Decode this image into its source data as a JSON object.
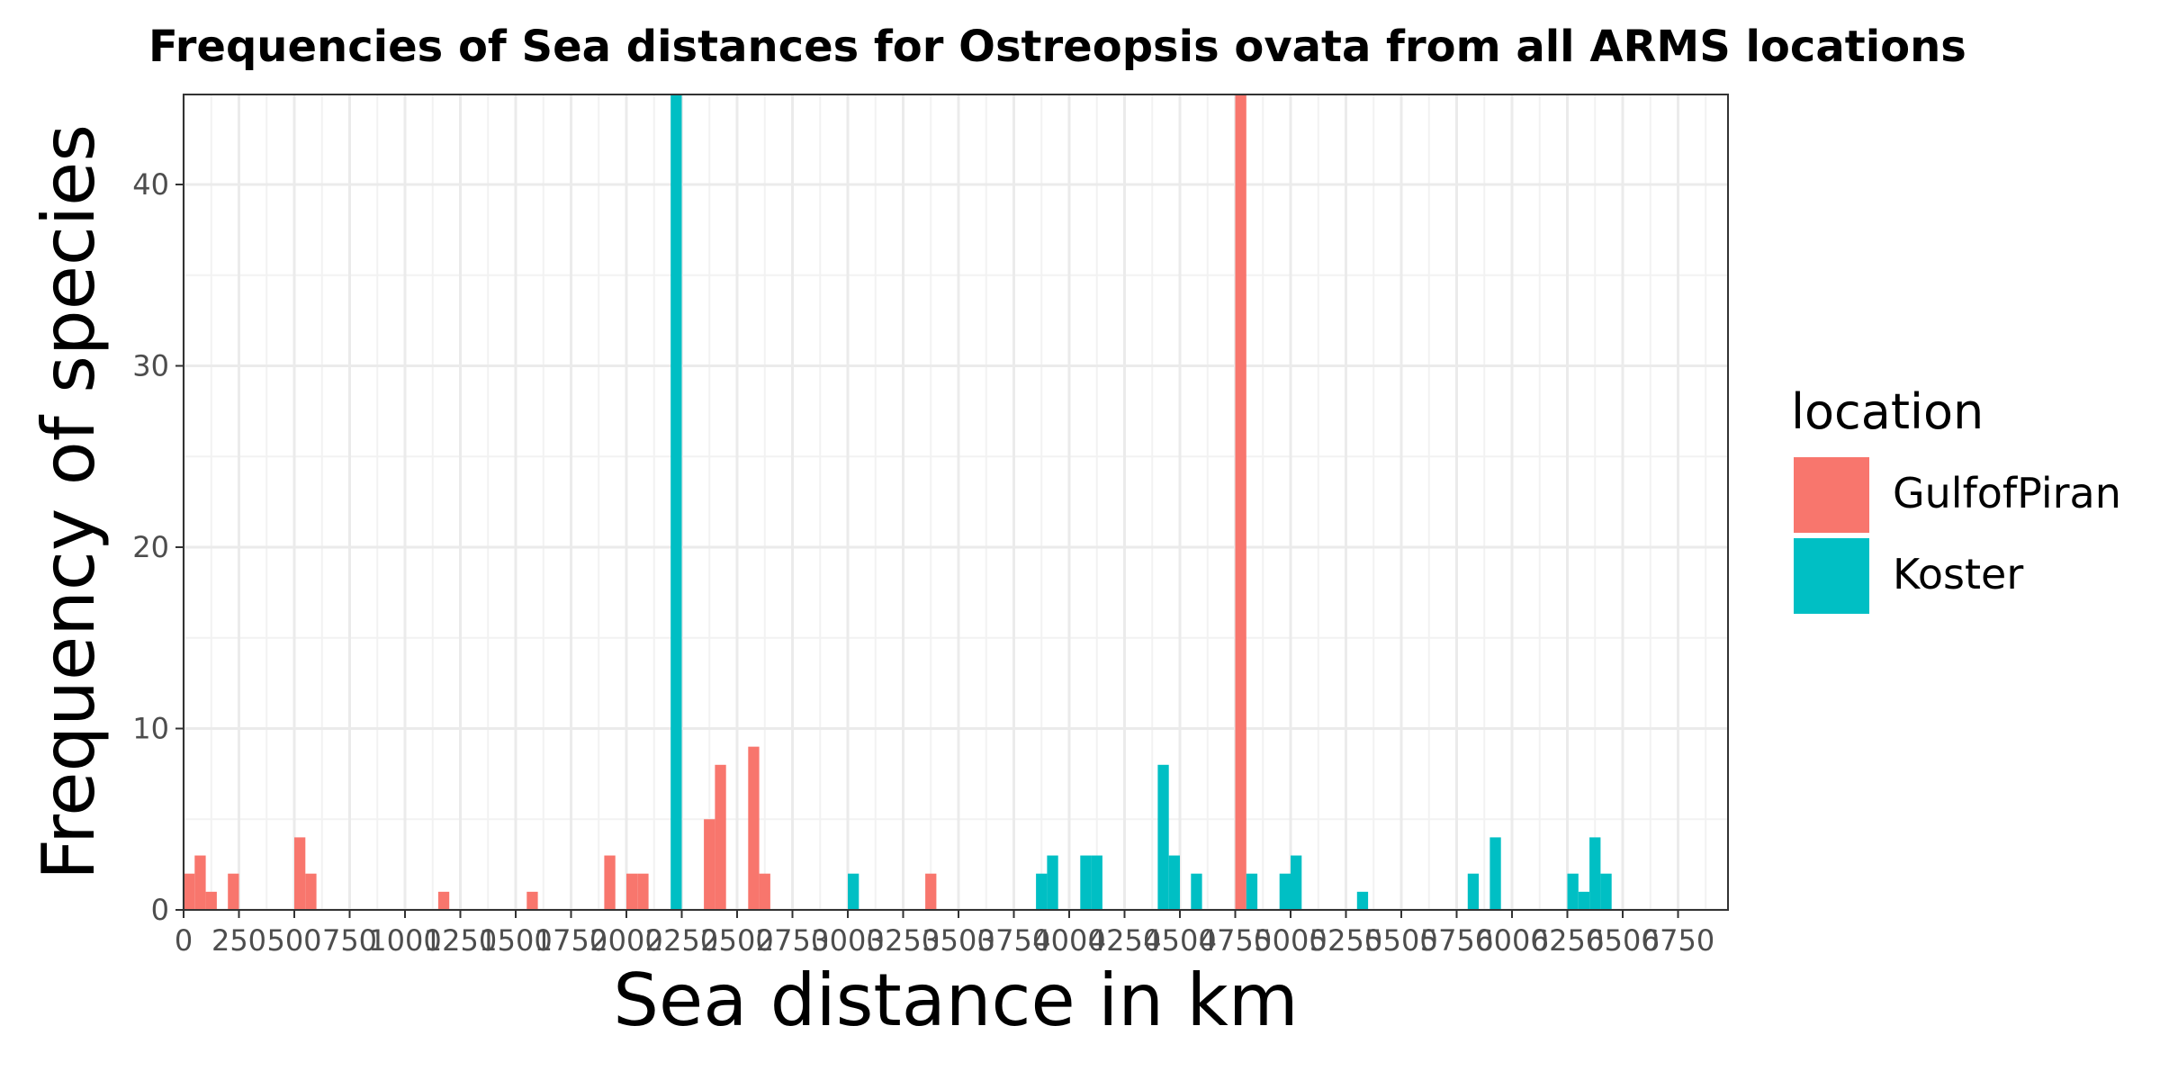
{
  "chart_data": {
    "type": "bar",
    "title": "Frequencies of Sea distances for Ostreopsis ovata from all ARMS locations",
    "xlabel": "Sea distance in km",
    "ylabel": "Frequency of species",
    "xlim": [
      0,
      7000
    ],
    "ylim": [
      0,
      45
    ],
    "bin_width": 50,
    "x_ticks": [
      0,
      250,
      500,
      750,
      1000,
      1250,
      1500,
      1750,
      2000,
      2250,
      2500,
      2750,
      3000,
      3250,
      3500,
      3750,
      4000,
      4250,
      4500,
      4750,
      5000,
      5250,
      5500,
      5750,
      6000,
      6250,
      6500,
      6750
    ],
    "y_ticks": [
      0,
      10,
      20,
      30,
      40
    ],
    "grid": true,
    "legend": {
      "title": "location",
      "placement": "right"
    },
    "series": [
      {
        "name": "GulfofPiran",
        "color": "#F8766D",
        "x": [
          0,
          50,
          100,
          200,
          500,
          550,
          1150,
          1550,
          1900,
          2000,
          2050,
          2350,
          2400,
          2550,
          2600,
          3350,
          4750
        ],
        "values": [
          2,
          3,
          1,
          2,
          4,
          2,
          1,
          1,
          3,
          2,
          2,
          5,
          8,
          9,
          2,
          2,
          45
        ]
      },
      {
        "name": "Koster",
        "color": "#00BFC4",
        "x": [
          2200,
          3000,
          3850,
          3900,
          4050,
          4100,
          4400,
          4450,
          4550,
          4800,
          4950,
          5000,
          5300,
          5800,
          5900,
          6250,
          6300,
          6350,
          6400
        ],
        "values": [
          45,
          2,
          2,
          3,
          3,
          3,
          8,
          3,
          2,
          2,
          2,
          3,
          1,
          2,
          4,
          2,
          1,
          4,
          2
        ]
      }
    ]
  }
}
